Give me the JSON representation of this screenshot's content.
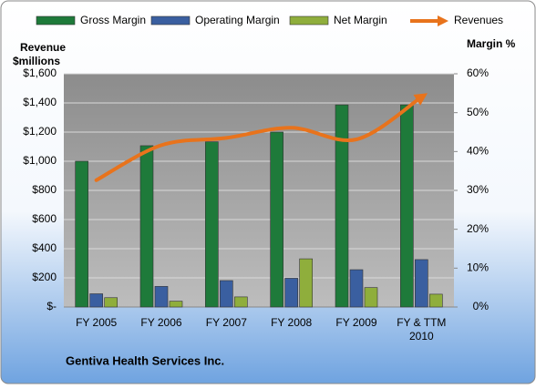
{
  "chart_data": {
    "type": "bar-line",
    "footer": "Gentiva Health Services Inc.",
    "y_label_lines": [
      "Revenue",
      "$millions"
    ],
    "y2_label": "Margin %",
    "categories": [
      "FY 2005",
      "FY 2006",
      "FY 2007",
      "FY 2008",
      "FY 2009",
      "FY & TTM 2010"
    ],
    "series": [
      {
        "name": "Gross Margin",
        "color": "#1e7a3a",
        "axis": "y2",
        "kind": "bar",
        "values": [
          37.5,
          41.5,
          42.5,
          45,
          52,
          52
        ]
      },
      {
        "name": "Operating Margin",
        "color": "#3a5fa0",
        "axis": "y2",
        "kind": "bar",
        "values": [
          3.4,
          5.3,
          6.8,
          7.4,
          9.6,
          12.2
        ]
      },
      {
        "name": "Net Margin",
        "color": "#8fae3c",
        "axis": "y2",
        "kind": "bar",
        "values": [
          2.4,
          1.5,
          2.6,
          12.4,
          5,
          3.3
        ]
      },
      {
        "name": "Revenues",
        "color": "#e8731c",
        "axis": "y",
        "kind": "line",
        "values": [
          870,
          1110,
          1160,
          1230,
          1150,
          1440
        ]
      }
    ],
    "ylim": [
      0,
      1600
    ],
    "yticks": [
      {
        "value": 0,
        "label": "$-"
      },
      {
        "value": 200,
        "label": "$200"
      },
      {
        "value": 400,
        "label": "$400"
      },
      {
        "value": 600,
        "label": "$600"
      },
      {
        "value": 800,
        "label": "$800"
      },
      {
        "value": 1000,
        "label": "$1,000"
      },
      {
        "value": 1200,
        "label": "$1,200"
      },
      {
        "value": 1400,
        "label": "$1,400"
      },
      {
        "value": 1600,
        "label": "$1,600"
      }
    ],
    "y2lim": [
      0,
      60
    ],
    "y2ticks": [
      {
        "value": 0,
        "label": "0%"
      },
      {
        "value": 10,
        "label": "10%"
      },
      {
        "value": 20,
        "label": "20%"
      },
      {
        "value": 30,
        "label": "30%"
      },
      {
        "value": 40,
        "label": "40%"
      },
      {
        "value": 50,
        "label": "50%"
      },
      {
        "value": 60,
        "label": "60%"
      }
    ],
    "grid": true
  }
}
